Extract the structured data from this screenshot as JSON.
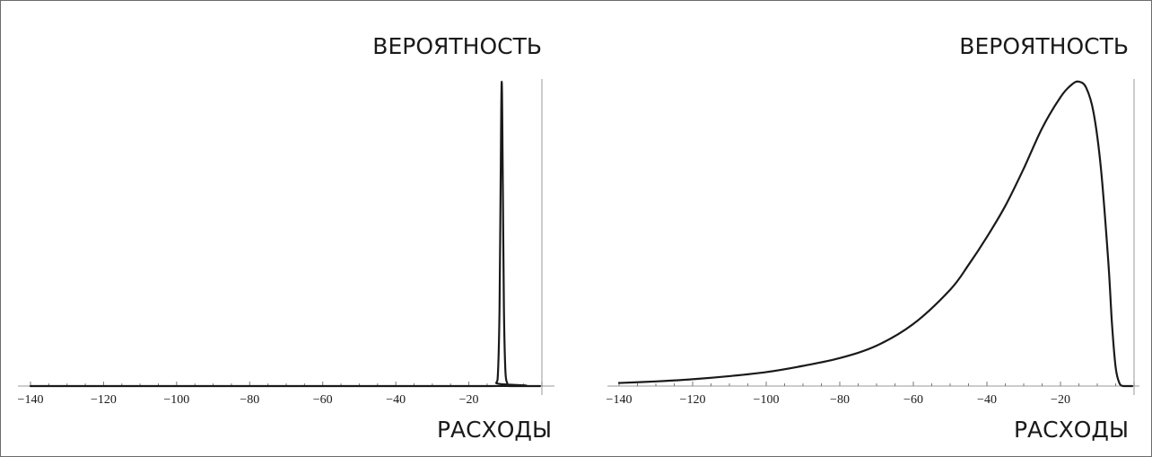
{
  "chart_data": [
    {
      "type": "line",
      "title": "",
      "ylabel": "ВЕРОЯТНОСТЬ",
      "xlabel": "РАСХОДЫ",
      "xlim": [
        -140,
        0
      ],
      "ylim": [
        0,
        1
      ],
      "x_ticks": [
        -140,
        -120,
        -100,
        -80,
        -60,
        -40,
        -20
      ],
      "x_tick_labels": [
        "−140",
        "−120",
        "−100",
        "−80",
        "−60",
        "−40",
        "−20"
      ],
      "grid": false,
      "series": [
        {
          "x": [
            -140,
            -14,
            -12.5,
            -12,
            -11.6,
            -11.3,
            -11,
            -10.7,
            -10.4,
            -10,
            -9.5,
            -9,
            -0.5
          ],
          "y": [
            0,
            0,
            0.01,
            0.05,
            0.25,
            0.65,
            0.98,
            0.65,
            0.25,
            0.05,
            0.01,
            0,
            0
          ]
        }
      ]
    },
    {
      "type": "line",
      "title": "",
      "ylabel": "ВЕРОЯТНОСТЬ",
      "xlabel": "РАСХОДЫ",
      "xlim": [
        -140,
        0
      ],
      "ylim": [
        0,
        1
      ],
      "x_ticks": [
        -140,
        -120,
        -100,
        -80,
        -60,
        -40,
        -20
      ],
      "x_tick_labels": [
        "−140",
        "−120",
        "−100",
        "−80",
        "−60",
        "−40",
        "−20"
      ],
      "grid": false,
      "series": [
        {
          "x": [
            -140,
            -130,
            -120,
            -110,
            -100,
            -90,
            -80,
            -70,
            -60,
            -50,
            -45,
            -40,
            -35,
            -30,
            -25,
            -20,
            -17,
            -15,
            -13,
            -11,
            -9,
            -7,
            -6,
            -5,
            -4,
            -3,
            -2,
            -0.5
          ],
          "y": [
            0.01,
            0.015,
            0.022,
            0.032,
            0.045,
            0.065,
            0.09,
            0.13,
            0.2,
            0.31,
            0.39,
            0.48,
            0.58,
            0.7,
            0.83,
            0.93,
            0.97,
            0.98,
            0.96,
            0.88,
            0.7,
            0.4,
            0.2,
            0.06,
            0.01,
            0,
            0,
            0
          ]
        }
      ]
    }
  ]
}
